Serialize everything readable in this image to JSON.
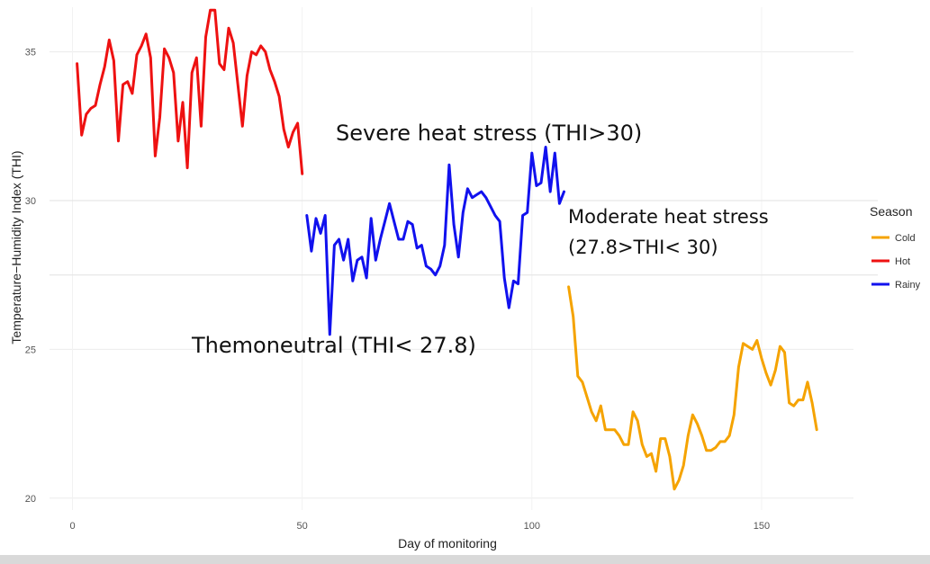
{
  "chart_data": {
    "type": "line",
    "title": "",
    "xlabel": "Day of monitoring",
    "ylabel": "Temperature−Humidity Index (THI)",
    "xlim": [
      -5,
      170
    ],
    "ylim": [
      19.6,
      36.5
    ],
    "xticks": [
      0,
      50,
      100,
      150
    ],
    "yticks": [
      20,
      25,
      30,
      35
    ],
    "reference_lines": [
      30,
      27.5
    ],
    "legend": {
      "title": "Season",
      "placement": "right",
      "entries": [
        "Cold",
        "Hot",
        "Rainy"
      ]
    },
    "annotations": [
      {
        "text": "Severe heat stress (THI>30)"
      },
      {
        "text": "Moderate heat stress"
      },
      {
        "text": "(27.8>THI< 30)"
      },
      {
        "text": "Themoneutral (THI< 27.8)"
      }
    ],
    "series": [
      {
        "name": "Hot",
        "color": "#ee1111",
        "x": [
          1,
          2,
          3,
          4,
          5,
          6,
          7,
          8,
          9,
          10,
          11,
          12,
          13,
          14,
          15,
          16,
          17,
          18,
          19,
          20,
          21,
          22,
          23,
          24,
          25,
          26,
          27,
          28,
          29,
          30,
          31,
          32,
          33,
          34,
          35,
          36,
          37,
          38,
          39,
          40,
          41,
          42,
          43,
          44,
          45,
          46,
          47,
          48,
          49,
          50
        ],
        "y": [
          34.6,
          32.2,
          32.9,
          33.1,
          33.2,
          33.9,
          34.5,
          35.4,
          34.7,
          32.0,
          33.9,
          34.0,
          33.6,
          34.9,
          35.2,
          35.6,
          34.8,
          31.5,
          32.8,
          35.1,
          34.8,
          34.3,
          32.0,
          33.3,
          31.1,
          34.3,
          34.8,
          32.5,
          35.5,
          36.4,
          36.4,
          34.6,
          34.4,
          35.8,
          35.3,
          33.9,
          32.5,
          34.2,
          35.0,
          34.9,
          35.2,
          35.0,
          34.4,
          34.0,
          33.5,
          32.4,
          31.8,
          32.3,
          32.6,
          30.9
        ]
      },
      {
        "name": "Rainy",
        "color": "#1111ee",
        "x": [
          51,
          52,
          53,
          54,
          55,
          56,
          57,
          58,
          59,
          60,
          61,
          62,
          63,
          64,
          65,
          66,
          67,
          68,
          69,
          70,
          71,
          72,
          73,
          74,
          75,
          76,
          77,
          78,
          79,
          80,
          81,
          82,
          83,
          84,
          85,
          86,
          87,
          88,
          89,
          90,
          91,
          92,
          93,
          94,
          95,
          96,
          97,
          98,
          99,
          100,
          101,
          102,
          103,
          104,
          105,
          106,
          107
        ],
        "y": [
          29.5,
          28.3,
          29.4,
          28.9,
          29.5,
          25.5,
          28.5,
          28.7,
          28.0,
          28.7,
          27.3,
          28.0,
          28.1,
          27.4,
          29.4,
          28.0,
          28.7,
          29.3,
          29.9,
          29.3,
          28.7,
          28.7,
          29.3,
          29.2,
          28.4,
          28.5,
          27.8,
          27.7,
          27.5,
          27.8,
          28.5,
          31.2,
          29.2,
          28.1,
          29.6,
          30.4,
          30.1,
          30.2,
          30.3,
          30.1,
          29.8,
          29.5,
          29.3,
          27.4,
          26.4,
          27.3,
          27.2,
          29.5,
          29.6,
          31.6,
          30.5,
          30.6,
          31.8,
          30.3,
          31.6,
          29.9,
          30.3
        ]
      },
      {
        "name": "Cold",
        "color": "#f5a300",
        "x": [
          108,
          109,
          110,
          111,
          112,
          113,
          114,
          115,
          116,
          117,
          118,
          119,
          120,
          121,
          122,
          123,
          124,
          125,
          126,
          127,
          128,
          129,
          130,
          131,
          132,
          133,
          134,
          135,
          136,
          137,
          138,
          139,
          140,
          141,
          142,
          143,
          144,
          145,
          146,
          147,
          148,
          149,
          150,
          151,
          152,
          153,
          154,
          155,
          156,
          157,
          158,
          159,
          160,
          161,
          162
        ],
        "y": [
          27.1,
          26.1,
          24.1,
          23.9,
          23.4,
          22.9,
          22.6,
          23.1,
          22.3,
          22.3,
          22.3,
          22.1,
          21.8,
          21.8,
          22.9,
          22.6,
          21.8,
          21.4,
          21.5,
          20.9,
          22.0,
          22.0,
          21.4,
          20.3,
          20.6,
          21.1,
          22.1,
          22.8,
          22.5,
          22.1,
          21.6,
          21.6,
          21.7,
          21.9,
          21.9,
          22.1,
          22.8,
          24.4,
          25.2,
          25.1,
          25.0,
          25.3,
          24.7,
          24.2,
          23.8,
          24.3,
          25.1,
          24.9,
          23.2,
          23.1,
          23.3,
          23.3,
          23.9,
          23.2,
          22.3
        ]
      }
    ]
  }
}
